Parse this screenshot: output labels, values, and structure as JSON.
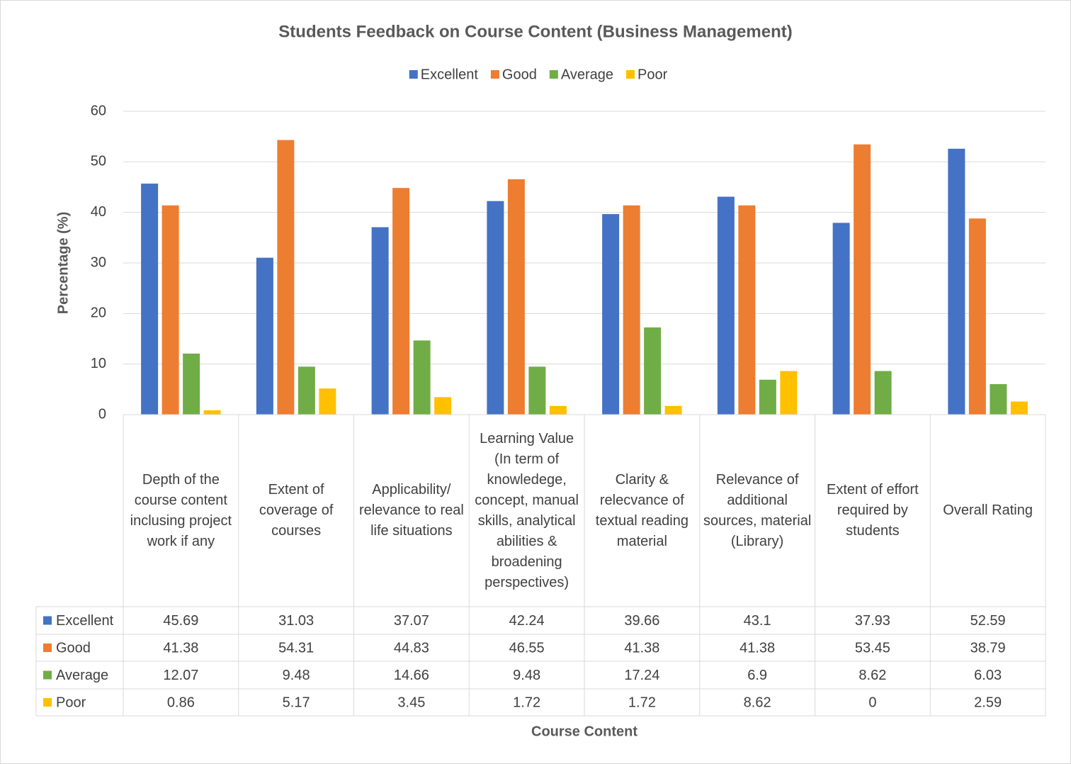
{
  "chart_data": {
    "type": "bar",
    "title": "Students Feedback on Course Content (Business Management)",
    "y_label": "Percentage (%)",
    "x_label": "Course Content",
    "categories": [
      "Depth of the course content inclusing project work if any",
      "Extent of coverage of courses",
      "Applicability/ relevance to real life situations",
      "Learning Value (In term of knowledege, concept, manual skills, analytical abilities & broadening perspectives)",
      "Clarity & relecvance of textual reading material",
      "Relevance of additional sources, material (Library)",
      "Extent of effort required by students",
      "Overall Rating"
    ],
    "series": [
      {
        "name": "Excellent",
        "color": "#4472c4",
        "values": [
          45.69,
          31.03,
          37.07,
          42.24,
          39.66,
          43.1,
          37.93,
          52.59
        ]
      },
      {
        "name": "Good",
        "color": "#ed7d31",
        "values": [
          41.38,
          54.31,
          44.83,
          46.55,
          41.38,
          41.38,
          53.45,
          38.79
        ]
      },
      {
        "name": "Average",
        "color": "#70ad47",
        "values": [
          12.07,
          9.48,
          14.66,
          9.48,
          17.24,
          6.9,
          8.62,
          6.03
        ]
      },
      {
        "name": "Poor",
        "color": "#ffc000",
        "values": [
          0.86,
          5.17,
          3.45,
          1.72,
          1.72,
          8.62,
          0,
          2.59
        ]
      }
    ],
    "ylim": [
      0,
      60
    ],
    "yticks": [
      0,
      10,
      20,
      30,
      40,
      50,
      60
    ],
    "grid": true,
    "legend": "top"
  }
}
